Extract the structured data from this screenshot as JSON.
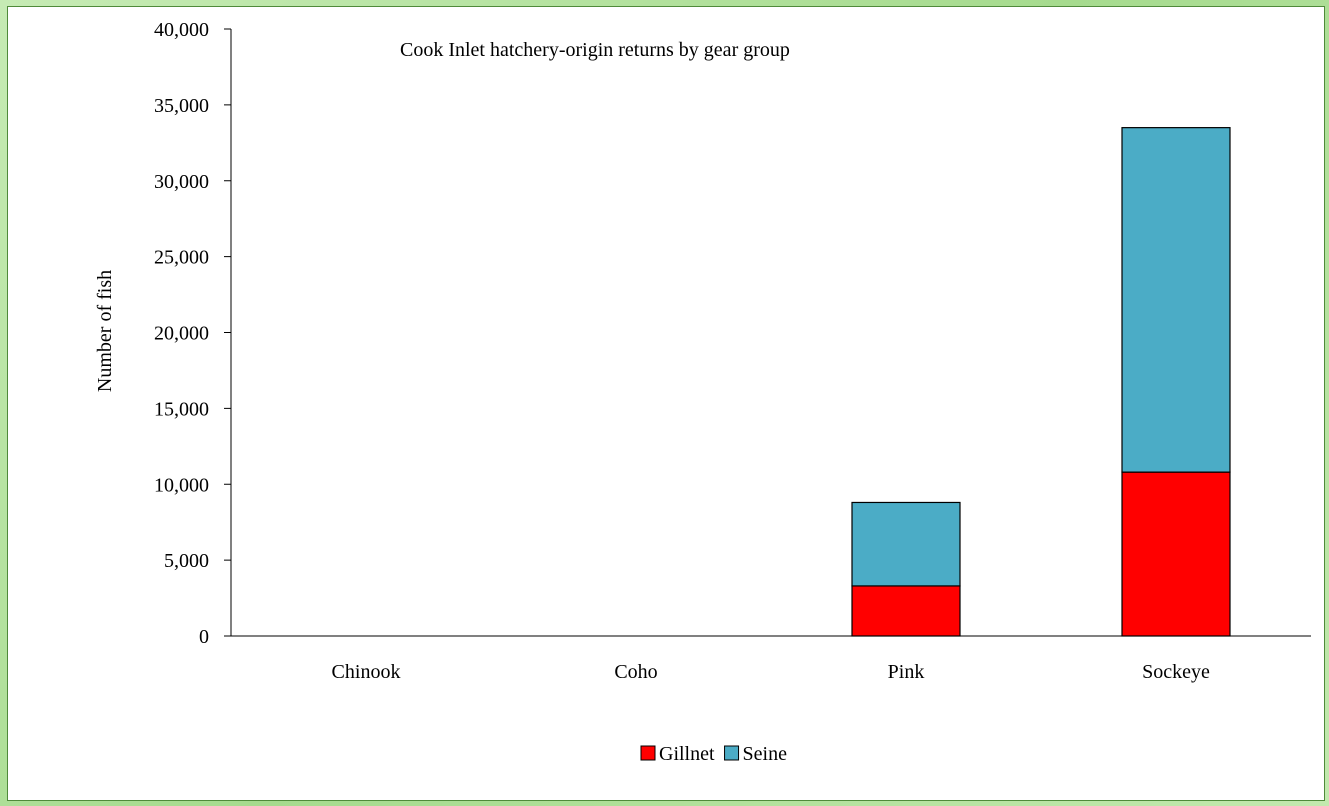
{
  "chart_data": {
    "type": "bar",
    "stacked": true,
    "title": "Cook Inlet hatchery-origin returns by gear group",
    "xlabel": "",
    "ylabel": "Number of fish",
    "categories": [
      "Chinook",
      "Coho",
      "Pink",
      "Sockeye"
    ],
    "series": [
      {
        "name": "Gillnet",
        "color": "#ff0000",
        "values": [
          0,
          0,
          3300,
          10800
        ]
      },
      {
        "name": "Seine",
        "color": "#4bacc6",
        "values": [
          0,
          0,
          5500,
          22700
        ]
      }
    ],
    "ylim": [
      0,
      40000
    ],
    "yticks": [
      0,
      5000,
      10000,
      15000,
      20000,
      25000,
      30000,
      35000,
      40000
    ],
    "ytick_labels": [
      "0",
      "5,000",
      "10,000",
      "15,000",
      "20,000",
      "25,000",
      "30,000",
      "35,000",
      "40,000"
    ],
    "grid": false,
    "legend_position": "bottom"
  }
}
